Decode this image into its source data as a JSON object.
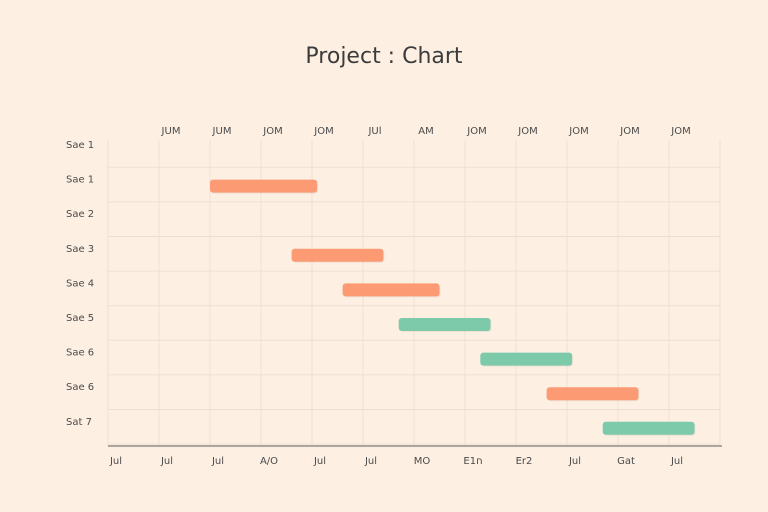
{
  "chart_data": {
    "type": "gantt",
    "title": "Project : Chart",
    "top_ticks": [
      "JUM",
      "JUM",
      "JOM",
      "JOM",
      "JUl",
      "AM",
      "JOM",
      "JOM",
      "JOM",
      "JOM",
      "JOM"
    ],
    "bottom_ticks": [
      "Jul",
      "Jul",
      "Jul",
      "A/O",
      "Jul",
      "Jul",
      "MO",
      "Eח1",
      "Er2",
      "Jul",
      "Gat",
      "Jul"
    ],
    "rows": [
      "Sae 1",
      "Sae 1",
      "Sae 2",
      "Sae 3",
      "Sae 4",
      "Sae 5",
      "Sae 6",
      "Sae 6",
      "Sat 7"
    ],
    "x_range": [
      0,
      12
    ],
    "tasks": [
      {
        "row": 1,
        "start": 2.0,
        "end": 4.1,
        "color": "#fb9a73"
      },
      {
        "row": 3,
        "start": 3.6,
        "end": 5.4,
        "color": "#fb9a73"
      },
      {
        "row": 4,
        "start": 4.6,
        "end": 6.5,
        "color": "#fb9a73"
      },
      {
        "row": 5,
        "start": 5.7,
        "end": 7.5,
        "color": "#7ccaaa"
      },
      {
        "row": 6,
        "start": 7.3,
        "end": 9.1,
        "color": "#7ccaaa"
      },
      {
        "row": 7,
        "start": 8.6,
        "end": 10.4,
        "color": "#fb9a73"
      },
      {
        "row": 8,
        "start": 9.7,
        "end": 11.5,
        "color": "#7ccaaa"
      }
    ],
    "grid": true
  }
}
